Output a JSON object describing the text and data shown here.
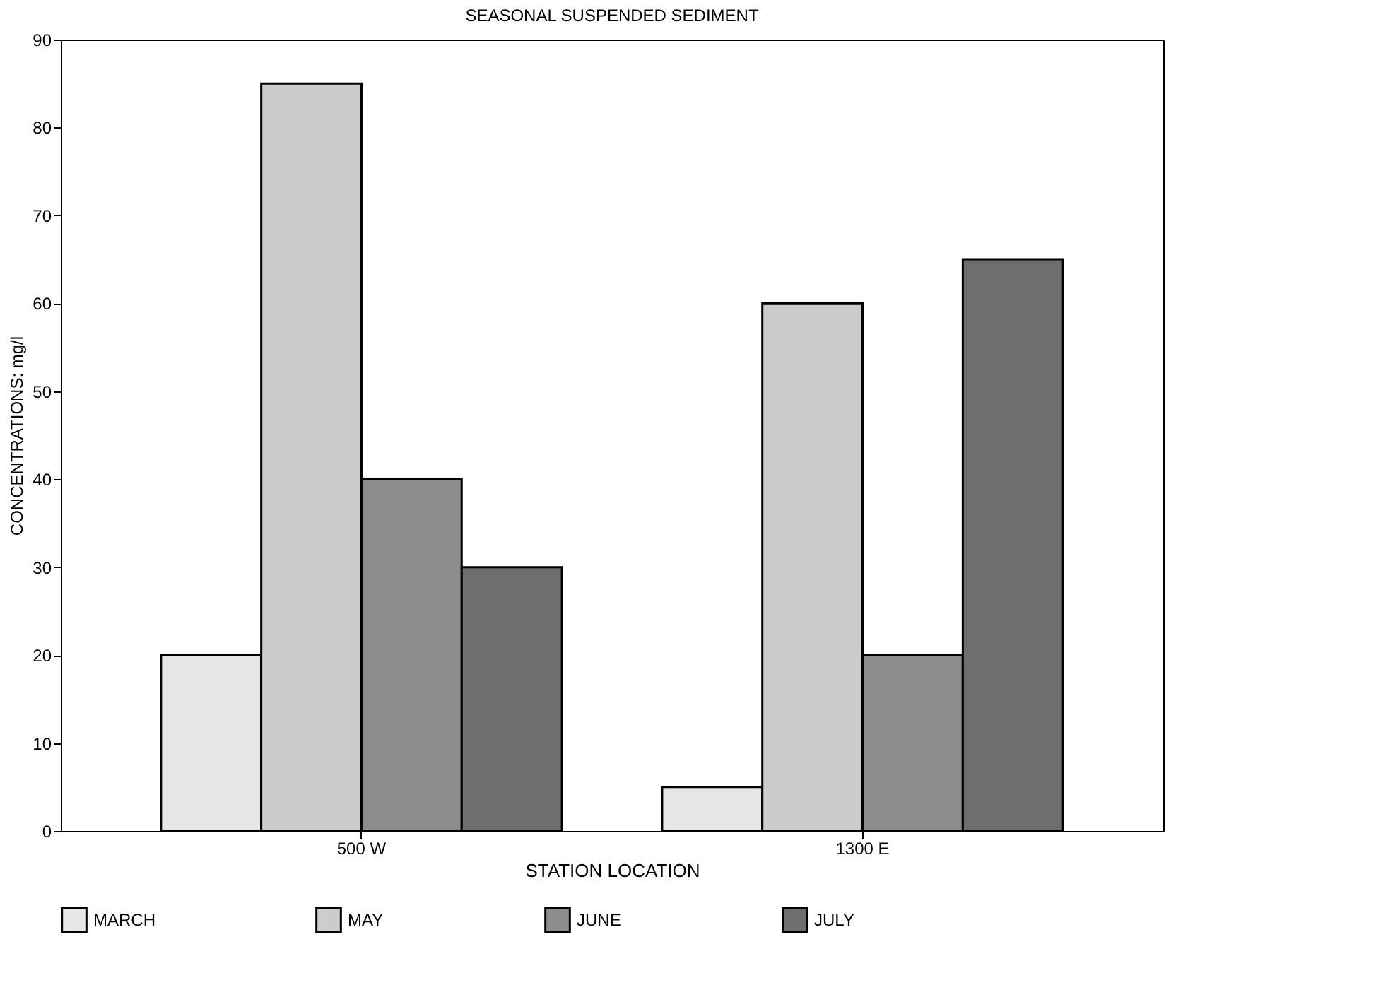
{
  "chart_data": {
    "type": "bar",
    "title": "SEASONAL SUSPENDED SEDIMENT",
    "xlabel": "STATION LOCATION",
    "ylabel": "CONCENTRATIONS: mg/l",
    "categories": [
      "500 W",
      "1300 E"
    ],
    "series": [
      {
        "name": "MARCH",
        "color": "#e6e6e6",
        "values": [
          20,
          5
        ]
      },
      {
        "name": "MAY",
        "color": "#cccccc",
        "values": [
          85,
          60
        ]
      },
      {
        "name": "JUNE",
        "color": "#8c8c8c",
        "values": [
          40,
          20
        ]
      },
      {
        "name": "JULY",
        "color": "#6e6e6e",
        "values": [
          30,
          65
        ]
      }
    ],
    "ylim": [
      0,
      90
    ],
    "yticks": [
      0,
      10,
      20,
      30,
      40,
      50,
      60,
      70,
      80,
      90
    ],
    "grid": false,
    "legend": "bottom"
  }
}
